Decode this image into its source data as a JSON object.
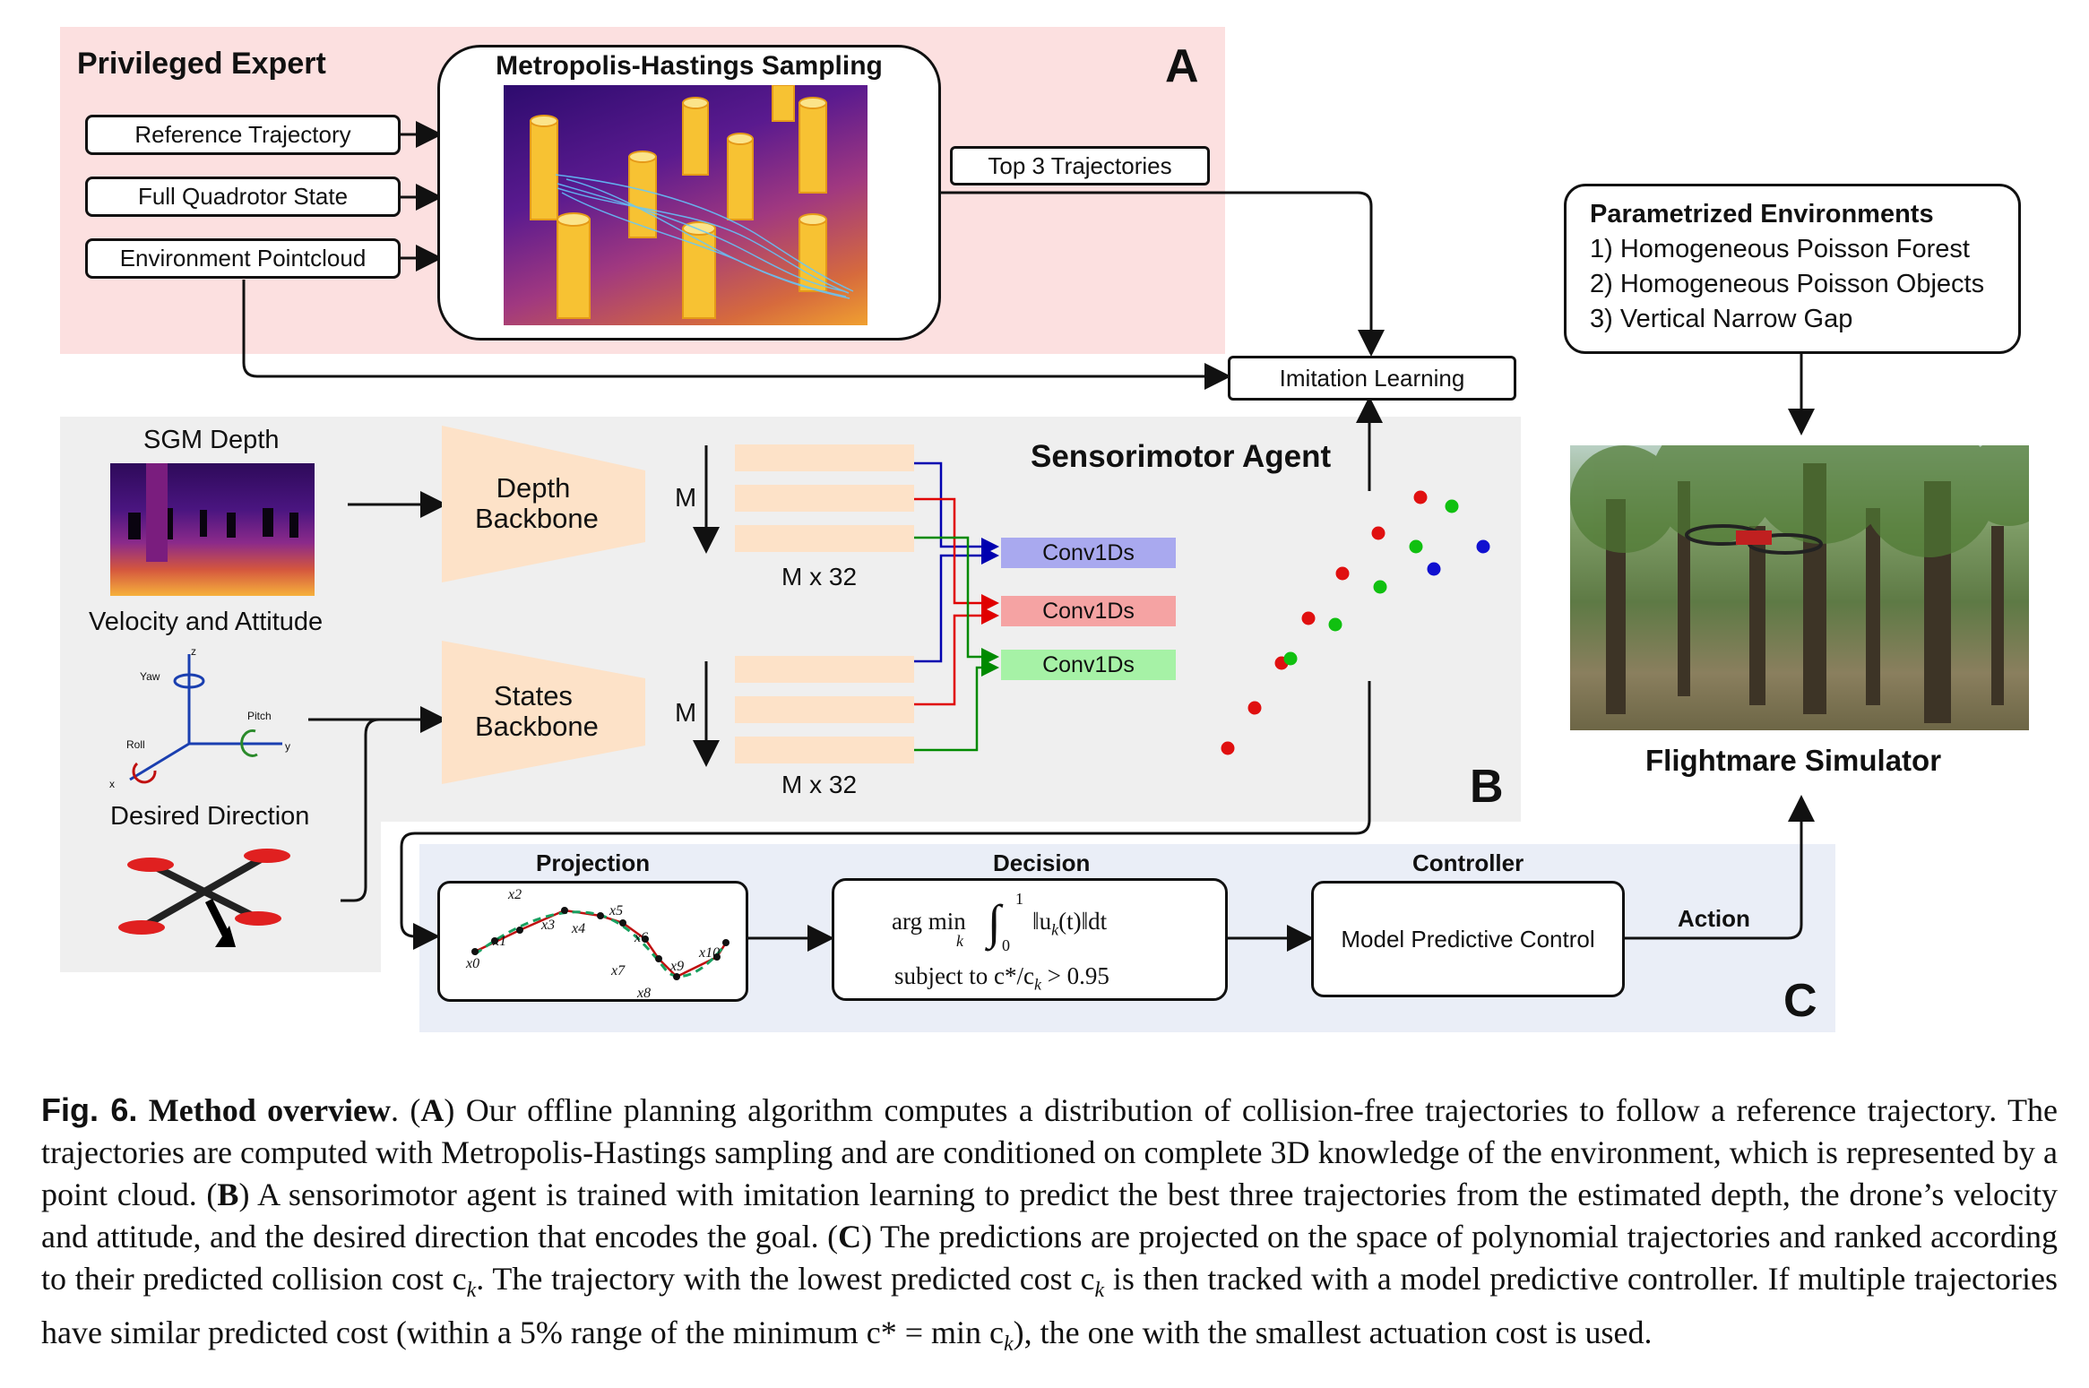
{
  "panel_a": {
    "title": "Privileged Expert",
    "letter": "A",
    "inputs": [
      "Reference Trajectory",
      "Full Quadrotor State",
      "Environment Pointcloud"
    ],
    "sampling_title": "Metropolis-Hastings Sampling",
    "output": "Top 3 Trajectories"
  },
  "imitation": "Imitation Learning",
  "environments": {
    "title": "Parametrized Environments",
    "items": [
      "1) Homogeneous Poisson Forest",
      "2) Homogeneous Poisson Objects",
      "3) Vertical Narrow Gap"
    ]
  },
  "simulator": "Flightmare Simulator",
  "panel_b": {
    "title": "Sensorimotor Agent",
    "letter": "B",
    "sgm": "SGM Depth",
    "velocity": "Velocity and Attitude",
    "desired": "Desired Direction",
    "axes": {
      "yaw": "Yaw",
      "pitch": "Pitch",
      "roll": "Roll",
      "x": "x",
      "y": "y",
      "z": "z"
    },
    "depth_backbone": "Depth Backbone",
    "states_backbone": "States Backbone",
    "m": "M",
    "mx32": "M x 32",
    "conv": [
      "Conv1Ds",
      "Conv1Ds",
      "Conv1Ds"
    ]
  },
  "panel_c": {
    "letter": "C",
    "projection": "Projection",
    "decision": "Decision",
    "controller": "Controller",
    "action": "Action",
    "mpc": "Model Predictive Control",
    "points": [
      "x0",
      "x1",
      "x2",
      "x3",
      "x4",
      "x5",
      "x6",
      "x7",
      "x8",
      "x9",
      "x10"
    ],
    "argmin": "arg min",
    "sub_k": "k",
    "norm": "‖u",
    "norm_tail": "(t)‖dt",
    "int_top": "1",
    "int_bot": "0",
    "subject": "subject to c*/c",
    "subject_tail": " > 0.95"
  },
  "caption": {
    "fig": "Fig. 6.",
    "title": "Method overview",
    "p1": ". (",
    "A": "A",
    "t1": ") Our offline planning algorithm computes a distribution of collision-free trajectories to follow a reference trajectory. The trajectories are computed with Metropolis-Hastings sampling and are conditioned on complete 3D knowledge of the environment, which is represented by a point cloud. (",
    "B": "B",
    "t2": ") A sensorimotor agent is trained with imitation learning to predict the best three trajectories from the estimated depth, the drone’s velocity and attitude, and the desired direction that encodes the goal. (",
    "C": "C",
    "t3": ") The predictions are projected on the space of polynomial trajectories and ranked according to their predicted collision cost c",
    "t4": ". The trajectory with the lowest predicted cost c",
    "t5": " is then tracked with a model predictive controller. If multiple trajectories have similar predicted cost (within a 5% range of the minimum c* = min c",
    "t6": "), the one with the smallest actuation cost is used.",
    "k": "k"
  },
  "colors": {
    "panel_a_bg": "#fce0e0",
    "panel_b_bg": "#efefef",
    "panel_c_bg": "#eaeef7",
    "backbone": "#fde2c8",
    "conv_blue": "#a9a9ef",
    "conv_red": "#f5a3a3",
    "conv_green": "#a6f2a6"
  }
}
